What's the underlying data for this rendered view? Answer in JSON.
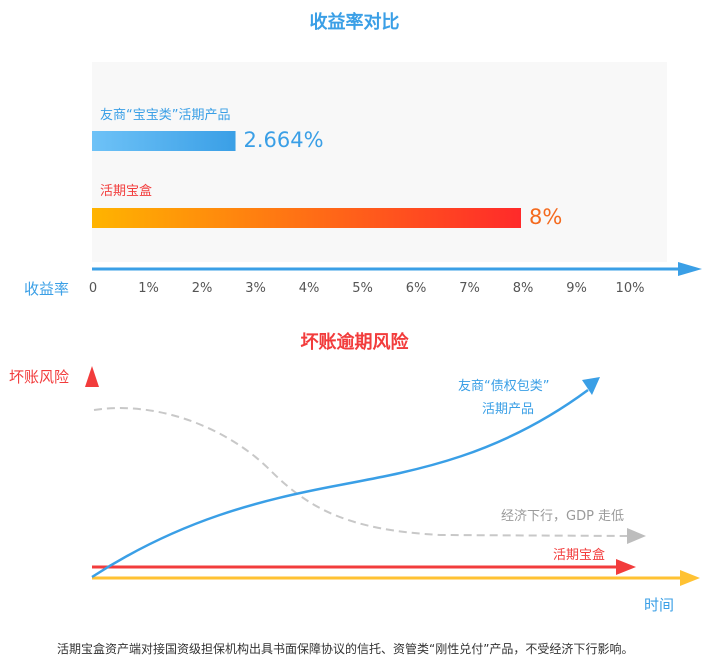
{
  "colors": {
    "blue": "#3a9fe6",
    "red": "#f23c3c",
    "orange": "#f46a1e",
    "yellow": "#ffc233",
    "gray": "#bdbdbd"
  },
  "chart_data": [
    {
      "type": "bar",
      "orientation": "horizontal",
      "title": "收益率对比",
      "xlabel": "收益率",
      "xlim": [
        0,
        10
      ],
      "tick_labels": [
        "0",
        "1%",
        "2%",
        "3%",
        "4%",
        "5%",
        "6%",
        "7%",
        "8%",
        "9%",
        "10%"
      ],
      "categories": [
        "友商“宝宝类”活期产品",
        "活期宝盒"
      ],
      "values": [
        2.664,
        8
      ],
      "data_labels": [
        "2.664%",
        "8%"
      ]
    },
    {
      "type": "line",
      "title": "坏账逾期风险",
      "xlabel": "时间",
      "ylabel": "坏账风险",
      "series": [
        {
          "name": "友商“债权包类”活期产品",
          "name_line2": "活期产品",
          "name_line1": "友商“债权包类”",
          "trend": "rising"
        },
        {
          "name": "经济下行，GDP 走低",
          "trend": "falling",
          "style": "dashed"
        },
        {
          "name": "活期宝盒",
          "trend": "flat"
        }
      ]
    }
  ],
  "footer": "活期宝盒资产端对接国资级担保机构出具书面保障协议的信托、资管类“刚性兑付”产品，不受经济下行影响。"
}
